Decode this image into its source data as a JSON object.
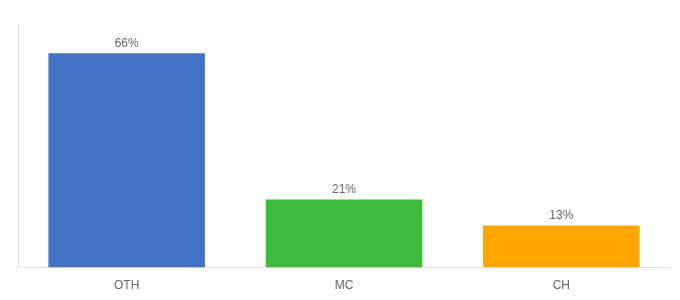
{
  "chart_data": {
    "type": "bar",
    "categories": [
      "OTH",
      "MC",
      "CH"
    ],
    "values": [
      66,
      21,
      13
    ],
    "value_labels": [
      "66%",
      "21%",
      "13%"
    ],
    "data_labels": true,
    "colors": [
      "#4472C4",
      "#3DBB3D",
      "#FFA500"
    ],
    "ylim": [
      0,
      75
    ],
    "grid": false,
    "tick_labels": "x"
  }
}
